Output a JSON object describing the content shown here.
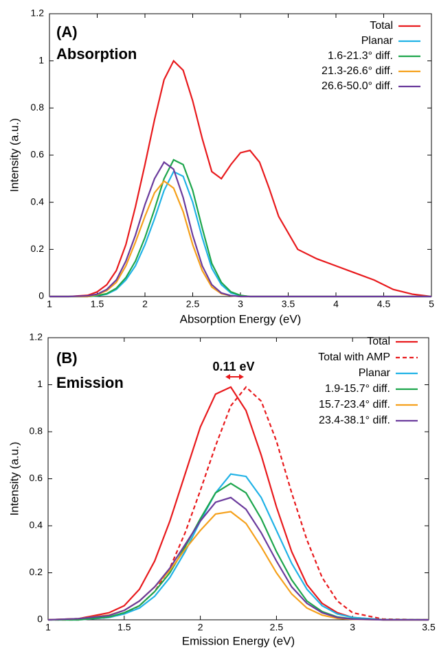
{
  "chart_data": [
    {
      "type": "line",
      "xlabel": "Absorption Energy (eV)",
      "ylabel": "Intensity (a.u.)",
      "annotations": [
        "(A)",
        "Absorption"
      ],
      "x": [
        1.0,
        1.2,
        1.4,
        1.5,
        1.6,
        1.7,
        1.8,
        1.9,
        2.0,
        2.1,
        2.2,
        2.3,
        2.4,
        2.5,
        2.6,
        2.7,
        2.8,
        2.9,
        3.0,
        3.1,
        3.2,
        3.3,
        3.4,
        3.6,
        3.8,
        4.0,
        4.2,
        4.4,
        4.6,
        4.8,
        5.0
      ],
      "xlim": [
        1,
        5
      ],
      "xticks": [
        1,
        1.5,
        2,
        2.5,
        3,
        3.5,
        4,
        4.5,
        5
      ],
      "ylim": [
        0,
        1.2
      ],
      "yticks": [
        0,
        0.2,
        0.4,
        0.6,
        0.8,
        1,
        1.2
      ],
      "grid": false,
      "legend": "upper right",
      "series": [
        {
          "name": "Total",
          "color": "#e8191c",
          "values": [
            0,
            0,
            0.005,
            0.02,
            0.05,
            0.11,
            0.22,
            0.38,
            0.56,
            0.75,
            0.92,
            1.0,
            0.96,
            0.83,
            0.67,
            0.53,
            0.5,
            0.56,
            0.61,
            0.62,
            0.57,
            0.46,
            0.34,
            0.2,
            0.16,
            0.13,
            0.1,
            0.07,
            0.03,
            0.01,
            0
          ]
        },
        {
          "name": "Planar",
          "color": "#1fb2e6",
          "values": [
            0,
            0,
            0,
            0.003,
            0.01,
            0.03,
            0.07,
            0.13,
            0.22,
            0.33,
            0.45,
            0.53,
            0.51,
            0.4,
            0.25,
            0.12,
            0.05,
            0.015,
            0.004,
            0,
            0,
            0,
            0,
            0,
            0,
            0,
            0,
            0,
            0,
            0,
            0
          ]
        },
        {
          "name": "1.6-21.3° diff.",
          "color": "#1ca54b",
          "values": [
            0,
            0,
            0,
            0.004,
            0.012,
            0.035,
            0.08,
            0.15,
            0.25,
            0.37,
            0.5,
            0.58,
            0.56,
            0.45,
            0.29,
            0.14,
            0.06,
            0.02,
            0.005,
            0,
            0,
            0,
            0,
            0,
            0,
            0,
            0,
            0,
            0,
            0,
            0
          ]
        },
        {
          "name": "21.3-26.6° diff.",
          "color": "#f5a01a",
          "values": [
            0,
            0,
            0,
            0.008,
            0.025,
            0.06,
            0.13,
            0.23,
            0.34,
            0.44,
            0.49,
            0.46,
            0.36,
            0.22,
            0.11,
            0.04,
            0.012,
            0.003,
            0,
            0,
            0,
            0,
            0,
            0,
            0,
            0,
            0,
            0,
            0,
            0,
            0
          ]
        },
        {
          "name": "26.6-50.0° diff.",
          "color": "#6a3a9c",
          "values": [
            0,
            0,
            0.003,
            0.01,
            0.03,
            0.07,
            0.15,
            0.26,
            0.39,
            0.5,
            0.57,
            0.54,
            0.42,
            0.26,
            0.13,
            0.05,
            0.015,
            0.004,
            0,
            0,
            0,
            0,
            0,
            0,
            0,
            0,
            0,
            0,
            0,
            0,
            0
          ]
        }
      ]
    },
    {
      "type": "line",
      "xlabel": "Emission Energy (eV)",
      "ylabel": "Intensity (a.u.)",
      "annotations": [
        "(B)",
        "Emission",
        "0.11 eV"
      ],
      "x": [
        1.0,
        1.2,
        1.4,
        1.5,
        1.6,
        1.7,
        1.8,
        1.9,
        2.0,
        2.1,
        2.2,
        2.3,
        2.4,
        2.5,
        2.6,
        2.7,
        2.8,
        2.9,
        3.0,
        3.2,
        3.5
      ],
      "xlim": [
        1,
        3.5
      ],
      "xticks": [
        1,
        1.5,
        2,
        2.5,
        3,
        3.5
      ],
      "ylim": [
        0,
        1.2
      ],
      "yticks": [
        0,
        0.2,
        0.4,
        0.6,
        0.8,
        1,
        1.2
      ],
      "grid": false,
      "legend": "upper right",
      "series": [
        {
          "name": "Total",
          "color": "#e8191c",
          "values": [
            0,
            0.005,
            0.03,
            0.06,
            0.13,
            0.25,
            0.42,
            0.62,
            0.82,
            0.96,
            0.99,
            0.89,
            0.7,
            0.48,
            0.29,
            0.15,
            0.07,
            0.03,
            0.01,
            0,
            0
          ]
        },
        {
          "name": "Total with AMP",
          "color": "#e8191c",
          "dash": true,
          "values": [
            0,
            0,
            0.01,
            0.025,
            0.06,
            0.12,
            0.22,
            0.37,
            0.55,
            0.74,
            0.91,
            0.99,
            0.93,
            0.76,
            0.54,
            0.34,
            0.18,
            0.08,
            0.03,
            0.003,
            0
          ]
        },
        {
          "name": "Planar",
          "color": "#1fb2e6",
          "values": [
            0,
            0,
            0.01,
            0.025,
            0.05,
            0.1,
            0.18,
            0.29,
            0.42,
            0.54,
            0.62,
            0.61,
            0.52,
            0.38,
            0.24,
            0.13,
            0.06,
            0.025,
            0.01,
            0.001,
            0
          ]
        },
        {
          "name": "1.9-15.7° diff.",
          "color": "#1ca54b",
          "values": [
            0,
            0,
            0.012,
            0.03,
            0.06,
            0.12,
            0.2,
            0.31,
            0.43,
            0.54,
            0.58,
            0.54,
            0.43,
            0.29,
            0.17,
            0.08,
            0.035,
            0.012,
            0.004,
            0,
            0
          ]
        },
        {
          "name": "15.7-23.4° diff.",
          "color": "#f5a01a",
          "values": [
            0,
            0.005,
            0.02,
            0.04,
            0.08,
            0.14,
            0.21,
            0.3,
            0.38,
            0.45,
            0.46,
            0.41,
            0.31,
            0.2,
            0.11,
            0.05,
            0.02,
            0.006,
            0.002,
            0,
            0
          ]
        },
        {
          "name": "23.4-38.1° diff.",
          "color": "#6a3a9c",
          "values": [
            0,
            0.005,
            0.018,
            0.04,
            0.08,
            0.14,
            0.22,
            0.32,
            0.42,
            0.5,
            0.52,
            0.47,
            0.37,
            0.25,
            0.14,
            0.07,
            0.03,
            0.01,
            0.003,
            0,
            0
          ]
        }
      ]
    }
  ]
}
